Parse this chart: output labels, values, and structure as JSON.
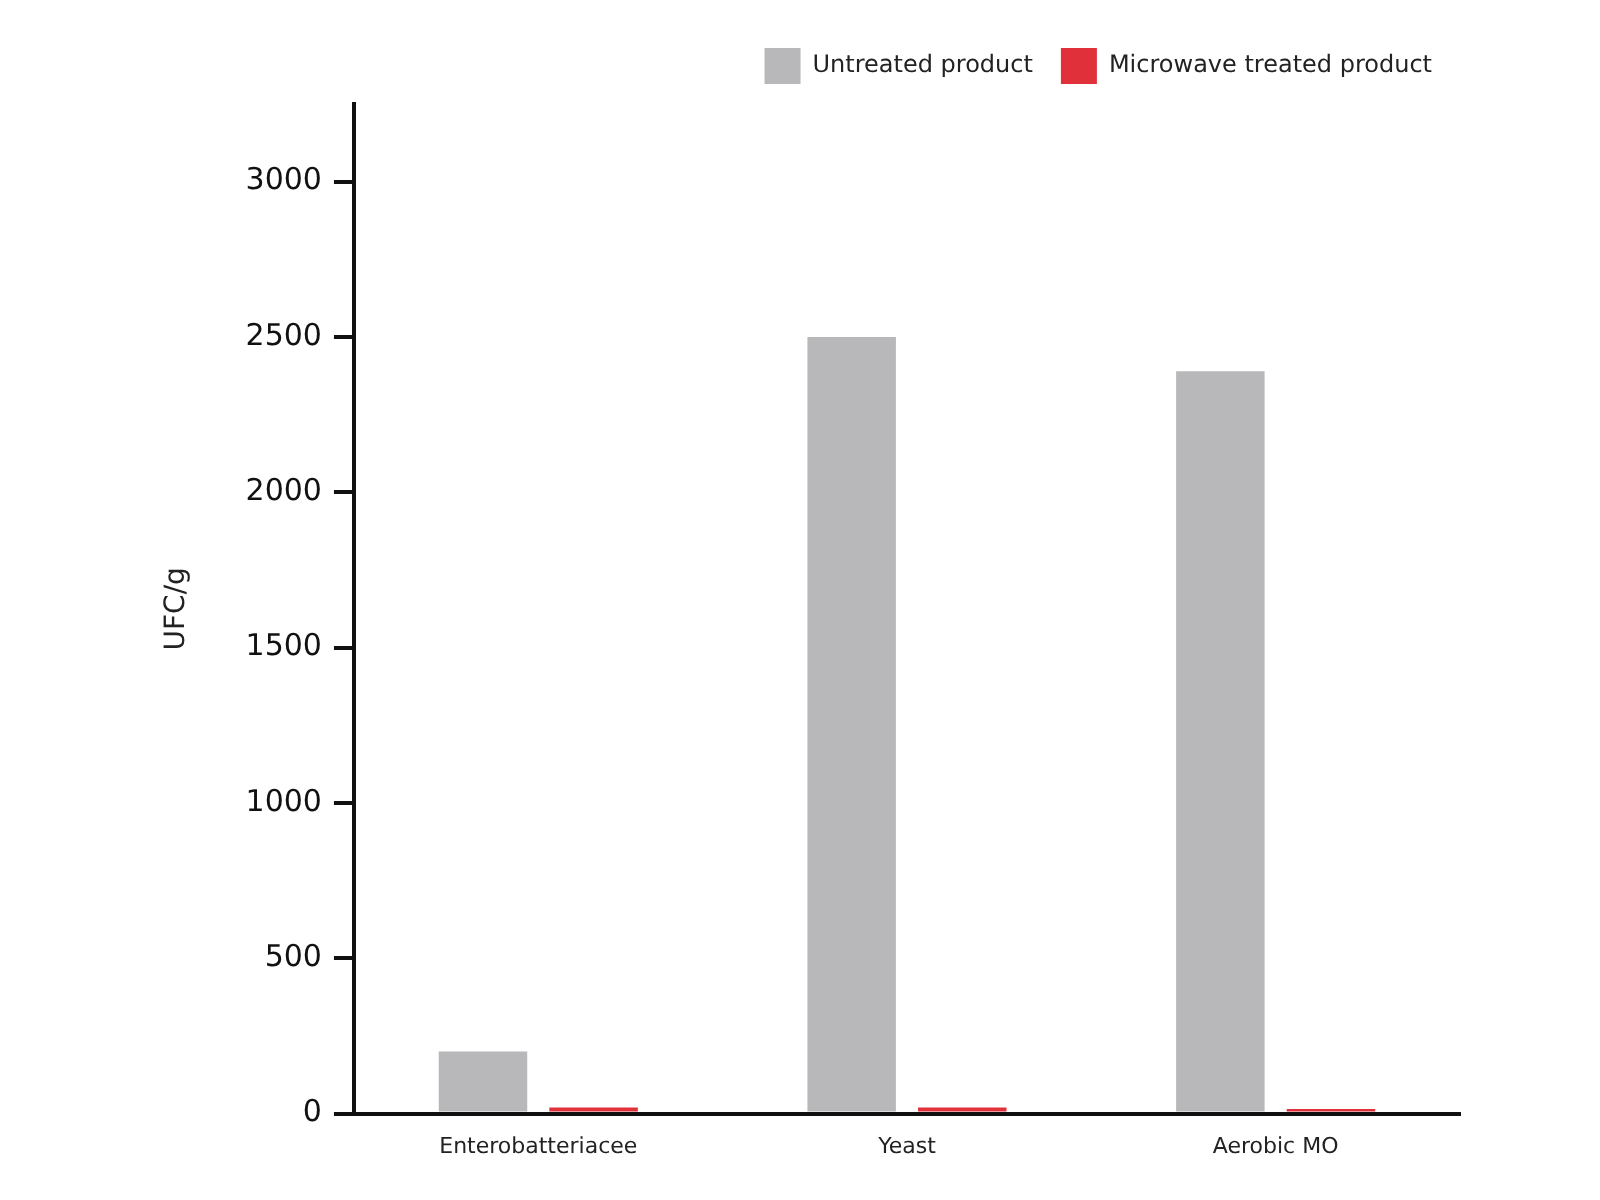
{
  "chart_data": {
    "type": "bar",
    "ylabel": "UFC/g",
    "categories": [
      "Enterobatteriacee",
      "Yeast",
      "Aerobic MO"
    ],
    "series": [
      {
        "name": "Untreated product",
        "color": "#b8b8ba",
        "values": [
          200,
          2500,
          2390
        ]
      },
      {
        "name": "Microwave treated product",
        "color": "#e0303a",
        "values": [
          20,
          20,
          15
        ]
      }
    ],
    "ylim": [
      0,
      3250
    ],
    "yticks": [
      0,
      500,
      1000,
      1500,
      2000,
      2500,
      3000
    ],
    "grid": false,
    "legend": "top right"
  }
}
